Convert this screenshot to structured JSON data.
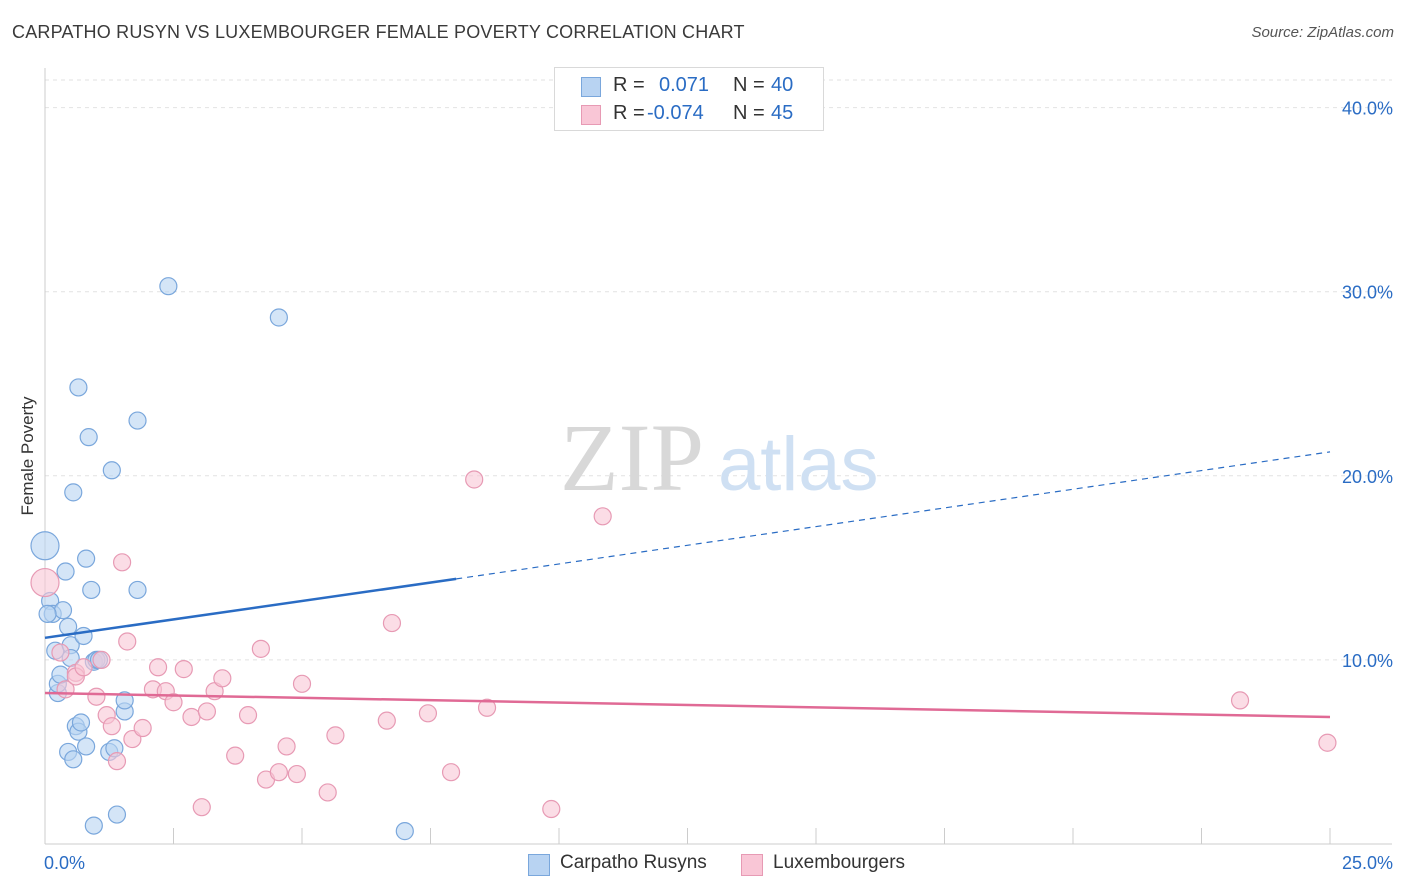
{
  "title": "CARPATHO RUSYN VS LUXEMBOURGER FEMALE POVERTY CORRELATION CHART",
  "source": "Source: ZipAtlas.com",
  "watermark": {
    "zip": "ZIP",
    "atlas": "atlas"
  },
  "legend": {
    "r_label": "R =",
    "n_label": "N =",
    "series": [
      {
        "r": "0.071",
        "n": "40"
      },
      {
        "r": "-0.074",
        "n": "45"
      }
    ]
  },
  "chart_data": {
    "type": "scatter",
    "title": "CARPATHO RUSYN VS LUXEMBOURGER FEMALE POVERTY CORRELATION CHART",
    "xlabel": "",
    "ylabel": "Female Poverty",
    "xlim": [
      0,
      25
    ],
    "ylim": [
      0,
      41.5
    ],
    "x_tick_labels": [
      "0.0%",
      "25.0%"
    ],
    "y_ticks": [
      10,
      20,
      30,
      40
    ],
    "y_tick_labels": [
      "10.0%",
      "20.0%",
      "30.0%",
      "40.0%"
    ],
    "colors": {
      "blue": "#2a6cc4",
      "pink": "#e06a95",
      "blue_fill": "#b8d3f2",
      "pink_fill": "#f9c6d6"
    },
    "series": [
      {
        "name": "Carpatho Rusyns",
        "color": "#2a6cc4",
        "points": [
          [
            0.0,
            16.2
          ],
          [
            0.1,
            13.2
          ],
          [
            0.15,
            12.5
          ],
          [
            0.2,
            10.5
          ],
          [
            0.25,
            8.2
          ],
          [
            0.25,
            8.7
          ],
          [
            0.3,
            9.2
          ],
          [
            0.35,
            12.7
          ],
          [
            0.4,
            14.8
          ],
          [
            0.45,
            11.8
          ],
          [
            0.45,
            5.0
          ],
          [
            0.5,
            10.8
          ],
          [
            0.5,
            10.1
          ],
          [
            0.55,
            4.6
          ],
          [
            0.55,
            19.1
          ],
          [
            0.6,
            6.4
          ],
          [
            0.65,
            6.1
          ],
          [
            0.65,
            24.8
          ],
          [
            0.7,
            6.6
          ],
          [
            0.75,
            11.3
          ],
          [
            0.8,
            5.3
          ],
          [
            0.8,
            15.5
          ],
          [
            0.85,
            22.1
          ],
          [
            0.9,
            13.8
          ],
          [
            0.95,
            9.9
          ],
          [
            0.95,
            1.0
          ],
          [
            1.0,
            10.0
          ],
          [
            1.05,
            10.0
          ],
          [
            1.25,
            5.0
          ],
          [
            1.3,
            20.3
          ],
          [
            1.35,
            5.2
          ],
          [
            1.4,
            1.6
          ],
          [
            1.55,
            7.2
          ],
          [
            1.55,
            7.8
          ],
          [
            1.8,
            13.8
          ],
          [
            1.8,
            23.0
          ],
          [
            2.4,
            30.3
          ],
          [
            4.55,
            28.6
          ],
          [
            7.0,
            0.7
          ],
          [
            0.05,
            12.5
          ]
        ],
        "trend": {
          "x0": 0,
          "y0": 11.2,
          "x1": 8.0,
          "y1": 14.4,
          "dash_to_x": 25,
          "dash_to_y": 21.3
        }
      },
      {
        "name": "Luxembourgers",
        "color": "#e06a95",
        "points": [
          [
            0.0,
            14.2
          ],
          [
            0.3,
            10.4
          ],
          [
            0.4,
            8.4
          ],
          [
            0.6,
            9.3
          ],
          [
            0.6,
            9.1
          ],
          [
            0.75,
            9.6
          ],
          [
            1.0,
            8.0
          ],
          [
            1.1,
            10.0
          ],
          [
            1.2,
            7.0
          ],
          [
            1.3,
            6.4
          ],
          [
            1.4,
            4.5
          ],
          [
            1.5,
            15.3
          ],
          [
            1.6,
            11.0
          ],
          [
            1.7,
            5.7
          ],
          [
            1.9,
            6.3
          ],
          [
            2.1,
            8.4
          ],
          [
            2.2,
            9.6
          ],
          [
            2.35,
            8.3
          ],
          [
            2.5,
            7.7
          ],
          [
            2.7,
            9.5
          ],
          [
            2.85,
            6.9
          ],
          [
            3.05,
            2.0
          ],
          [
            3.15,
            7.2
          ],
          [
            3.3,
            8.3
          ],
          [
            3.45,
            9.0
          ],
          [
            3.7,
            4.8
          ],
          [
            3.95,
            7.0
          ],
          [
            4.2,
            10.6
          ],
          [
            4.3,
            3.5
          ],
          [
            4.55,
            3.9
          ],
          [
            4.7,
            5.3
          ],
          [
            4.9,
            3.8
          ],
          [
            5.0,
            8.7
          ],
          [
            5.5,
            2.8
          ],
          [
            5.65,
            5.9
          ],
          [
            6.65,
            6.7
          ],
          [
            6.75,
            12.0
          ],
          [
            7.45,
            7.1
          ],
          [
            7.9,
            3.9
          ],
          [
            8.35,
            19.8
          ],
          [
            8.6,
            7.4
          ],
          [
            9.85,
            1.9
          ],
          [
            10.85,
            17.8
          ],
          [
            23.25,
            7.8
          ],
          [
            24.95,
            5.5
          ]
        ],
        "trend": {
          "x0": 0,
          "y0": 8.2,
          "x1": 25,
          "y1": 6.9
        }
      }
    ]
  }
}
